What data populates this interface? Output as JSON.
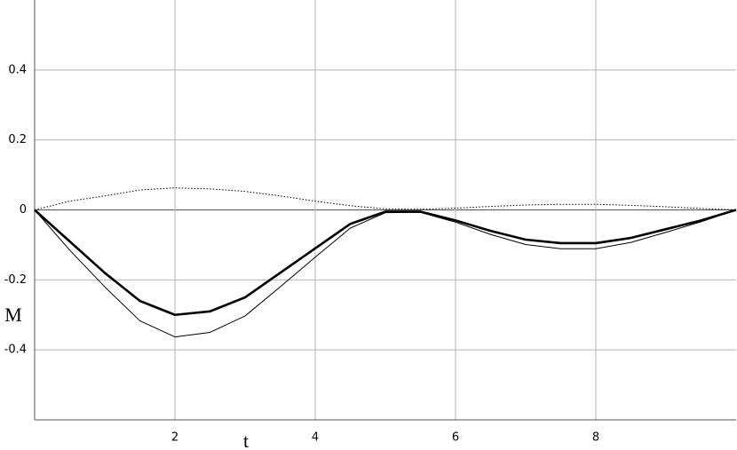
{
  "chart_data": {
    "type": "line",
    "x_label": "t",
    "y_label": "M",
    "x": [
      0,
      0.5,
      1,
      1.5,
      2,
      2.5,
      3,
      3.5,
      4,
      4.5,
      5,
      5.5,
      6,
      6.5,
      7,
      7.5,
      8,
      8.5,
      9,
      9.5,
      10
    ],
    "series": [
      {
        "color": "#000000",
        "style": "thick",
        "values": [
          0,
          -0.09,
          -0.18,
          -0.26,
          -0.3,
          -0.29,
          -0.25,
          -0.18,
          -0.11,
          -0.04,
          -0.005,
          -0.005,
          -0.03,
          -0.06,
          -0.085,
          -0.095,
          -0.095,
          -0.08,
          -0.055,
          -0.03,
          0
        ]
      },
      {
        "color": "#000000",
        "style": "thin",
        "values": [
          0,
          -0.115,
          -0.22,
          -0.317,
          -0.363,
          -0.35,
          -0.303,
          -0.22,
          -0.135,
          -0.052,
          -0.008,
          -0.007,
          -0.035,
          -0.07,
          -0.099,
          -0.111,
          -0.111,
          -0.093,
          -0.064,
          -0.034,
          0
        ]
      },
      {
        "color": "#000000",
        "style": "dotted",
        "values": [
          0,
          0.025,
          0.04,
          0.057,
          0.063,
          0.06,
          0.053,
          0.04,
          0.025,
          0.012,
          0.003,
          0.002,
          0.005,
          0.01,
          0.014,
          0.016,
          0.016,
          0.013,
          0.009,
          0.004,
          0
        ]
      }
    ],
    "xlim": [
      0,
      10
    ],
    "ylim": [
      -0.6,
      0.6
    ],
    "xticks": [
      2,
      4,
      6,
      8
    ],
    "yticks": [
      -0.4,
      -0.2,
      0,
      0.2,
      0.4
    ],
    "grid": true
  }
}
